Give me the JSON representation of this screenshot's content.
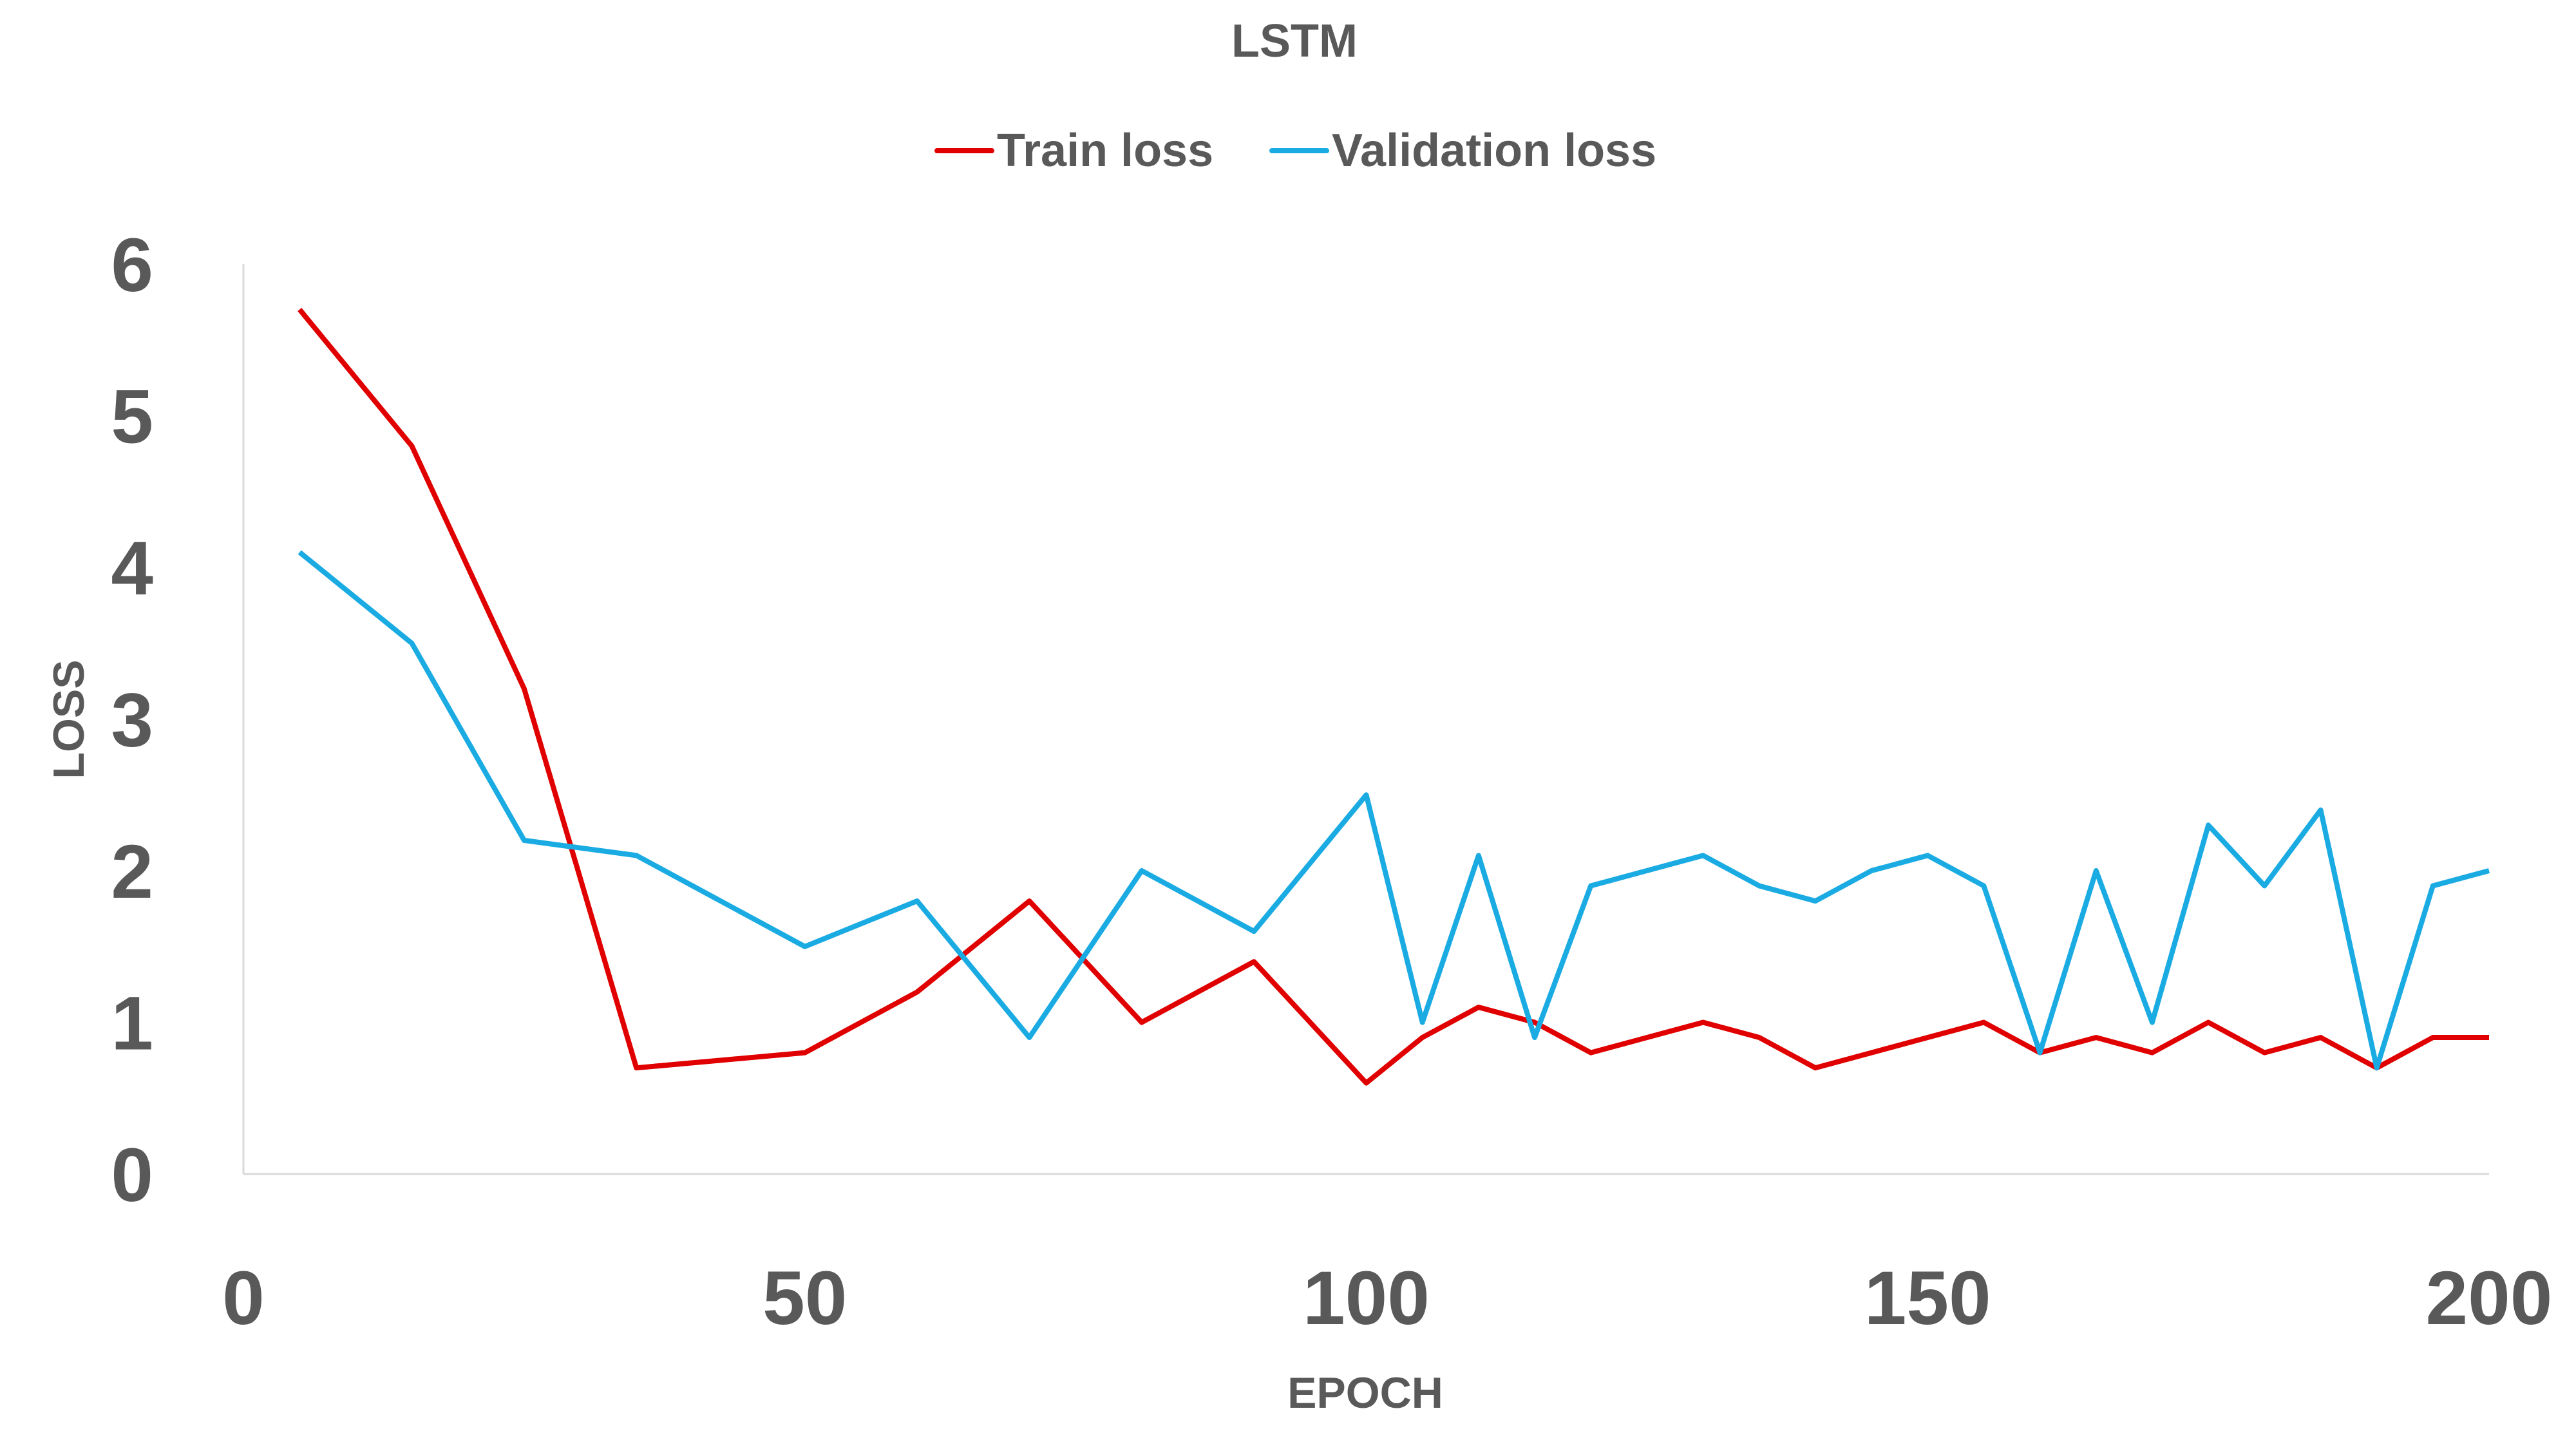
{
  "chart_data": {
    "type": "line",
    "title": "LSTM",
    "xlabel": "EPOCH",
    "ylabel": "LOSS",
    "xlim": [
      0,
      200
    ],
    "ylim": [
      0,
      6
    ],
    "x_ticks": [
      "0",
      "50",
      "100",
      "150",
      "200"
    ],
    "y_ticks": [
      "0",
      "1",
      "2",
      "3",
      "4",
      "5",
      "6"
    ],
    "grid": false,
    "legend_position": "top",
    "x": [
      5,
      15,
      25,
      35,
      50,
      60,
      70,
      80,
      90,
      100,
      105,
      110,
      115,
      120,
      130,
      135,
      140,
      145,
      150,
      155,
      160,
      165,
      170,
      175,
      180,
      185,
      190,
      195,
      200
    ],
    "series": [
      {
        "name": "Train loss",
        "color": "#e00000",
        "values": [
          5.7,
          4.8,
          3.2,
          0.7,
          0.8,
          1.2,
          1.8,
          1.0,
          1.4,
          0.6,
          0.9,
          1.1,
          1.0,
          0.8,
          1.0,
          0.9,
          0.7,
          0.8,
          0.9,
          1.0,
          0.8,
          0.9,
          0.8,
          1.0,
          0.8,
          0.9,
          0.7,
          0.9,
          0.9
        ]
      },
      {
        "name": "Validation loss",
        "color": "#1aabe3",
        "values": [
          4.1,
          3.5,
          2.2,
          2.1,
          1.5,
          1.8,
          0.9,
          2.0,
          1.6,
          2.5,
          1.0,
          2.1,
          0.9,
          1.9,
          2.1,
          1.9,
          1.8,
          2.0,
          2.1,
          1.9,
          0.8,
          2.0,
          1.0,
          2.3,
          1.9,
          2.4,
          0.7,
          1.9,
          2.0
        ]
      }
    ]
  }
}
